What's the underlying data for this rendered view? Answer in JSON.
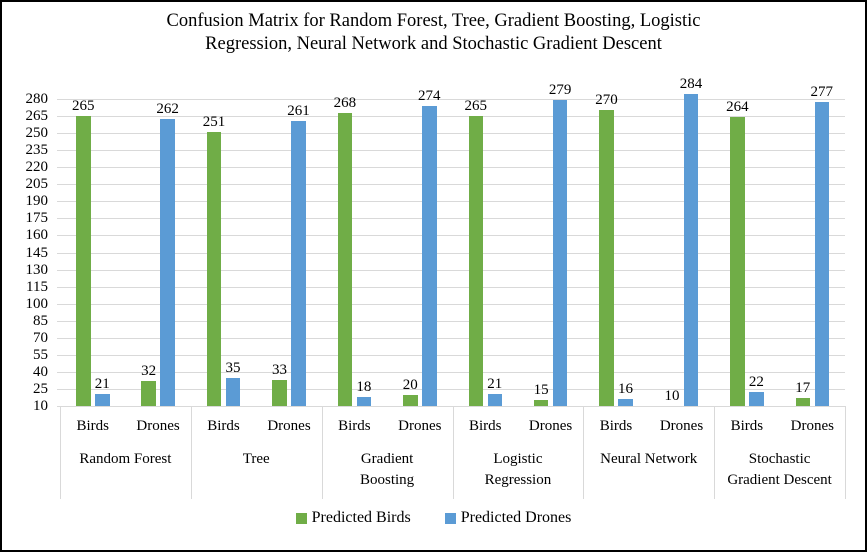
{
  "title": {
    "line1": "Confusion Matrix for Random Forest, Tree, Gradient Boosting, Logistic",
    "line2": "Regression, Neural Network and Stochastic Gradient Descent"
  },
  "chart_data": {
    "type": "bar",
    "title": "Confusion Matrix for Random Forest, Tree, Gradient Boosting, Logistic Regression, Neural Network and Stochastic Gradient Descent",
    "legend_position": "bottom",
    "grid": true,
    "y_axis": {
      "min": 10,
      "max": 280,
      "tick_step": 15,
      "ticks": [
        10,
        25,
        40,
        55,
        70,
        85,
        100,
        115,
        130,
        145,
        160,
        175,
        190,
        205,
        220,
        235,
        250,
        265,
        280
      ]
    },
    "groups": [
      {
        "label": "Random Forest",
        "label_lines": [
          "Random Forest"
        ],
        "categories": [
          "Birds",
          "Drones"
        ]
      },
      {
        "label": "Tree",
        "label_lines": [
          "Tree"
        ],
        "categories": [
          "Birds",
          "Drones"
        ]
      },
      {
        "label": "Gradient Boosting",
        "label_lines": [
          "Gradient",
          "Boosting"
        ],
        "categories": [
          "Birds",
          "Drones"
        ]
      },
      {
        "label": "Logistic Regression",
        "label_lines": [
          "Logistic",
          "Regression"
        ],
        "categories": [
          "Birds",
          "Drones"
        ]
      },
      {
        "label": "Neural Network",
        "label_lines": [
          "Neural Network"
        ],
        "categories": [
          "Birds",
          "Drones"
        ]
      },
      {
        "label": "Stochastic Gradient Descent",
        "label_lines": [
          "Stochastic",
          "Gradient Descent"
        ],
        "categories": [
          "Birds",
          "Drones"
        ]
      }
    ],
    "series": [
      {
        "name": "Predicted Birds",
        "color": "#70AD47",
        "values": [
          [
            265,
            32
          ],
          [
            251,
            33
          ],
          [
            268,
            20
          ],
          [
            265,
            15
          ],
          [
            270,
            10
          ],
          [
            264,
            17
          ]
        ]
      },
      {
        "name": "Predicted Drones",
        "color": "#5B9BD5",
        "values": [
          [
            21,
            262
          ],
          [
            35,
            261
          ],
          [
            18,
            274
          ],
          [
            21,
            279
          ],
          [
            16,
            284
          ],
          [
            22,
            277
          ]
        ]
      }
    ]
  },
  "colors": {
    "gridline": "#d9d9d9",
    "axis_lines": "#d9d9d9",
    "text": "#000000",
    "background": "#ffffff"
  }
}
